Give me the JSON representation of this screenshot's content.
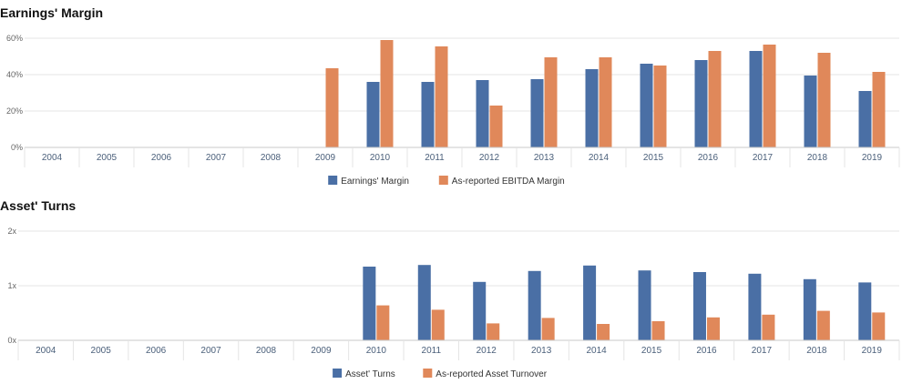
{
  "colors": {
    "series1": "#4a6fa5",
    "series2": "#e0885a",
    "grid": "#e4e4e4",
    "axis": "#c8c8c8"
  },
  "chart_data": [
    {
      "type": "bar",
      "title": "Earnings' Margin",
      "categories": [
        "2004",
        "2005",
        "2006",
        "2007",
        "2008",
        "2009",
        "2010",
        "2011",
        "2012",
        "2013",
        "2014",
        "2015",
        "2016",
        "2017",
        "2018",
        "2019"
      ],
      "series": [
        {
          "name": "Earnings' Margin",
          "values": [
            null,
            null,
            null,
            null,
            null,
            null,
            36,
            36,
            37,
            37.5,
            43,
            46,
            48,
            53,
            39.5,
            31
          ]
        },
        {
          "name": "As-reported EBITDA Margin",
          "values": [
            null,
            null,
            null,
            null,
            null,
            43.5,
            59,
            55.5,
            23,
            49.5,
            49.5,
            45,
            53,
            56.5,
            52,
            41.5
          ]
        }
      ],
      "ylim": [
        0,
        60
      ],
      "yticks": [
        0,
        20,
        40,
        60
      ],
      "ytick_labels": [
        "0%",
        "20%",
        "40%",
        "60%"
      ],
      "legend": "bottom-center",
      "grid": true
    },
    {
      "type": "bar",
      "title": "Asset' Turns",
      "categories": [
        "2004",
        "2005",
        "2006",
        "2007",
        "2008",
        "2009",
        "2010",
        "2011",
        "2012",
        "2013",
        "2014",
        "2015",
        "2016",
        "2017",
        "2018",
        "2019"
      ],
      "series": [
        {
          "name": "Asset' Turns",
          "values": [
            null,
            null,
            null,
            null,
            null,
            null,
            1.35,
            1.38,
            1.07,
            1.27,
            1.37,
            1.28,
            1.25,
            1.22,
            1.12,
            1.06
          ]
        },
        {
          "name": "As-reported Asset Turnover",
          "values": [
            null,
            null,
            null,
            null,
            null,
            null,
            0.64,
            0.56,
            0.31,
            0.41,
            0.3,
            0.35,
            0.42,
            0.47,
            0.54,
            0.51
          ]
        }
      ],
      "ylim": [
        0,
        2
      ],
      "yticks": [
        0,
        1,
        2
      ],
      "ytick_labels": [
        "0x",
        "1x",
        "2x"
      ],
      "legend": "bottom-center",
      "grid": true
    }
  ]
}
